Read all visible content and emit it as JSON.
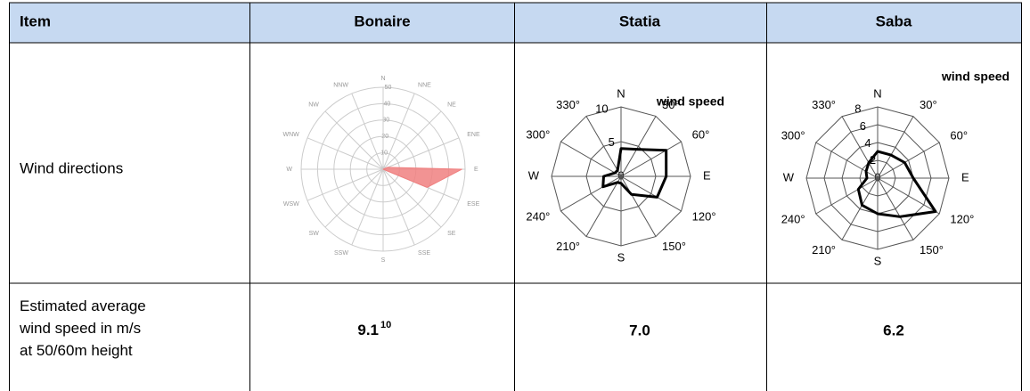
{
  "table": {
    "header": [
      "Item",
      "Bonaire",
      "Statia",
      "Saba"
    ],
    "rows": [
      [
        "Wind directions"
      ],
      [
        "Estimated average wind speed in m/s at 50/60m height",
        "9.1",
        "7.0",
        "6.2"
      ]
    ],
    "footnote_ref": "10"
  },
  "roses": [
    {
      "directions": [
        "N",
        "NNE",
        "NE",
        "ENE",
        "E",
        "ESE",
        "SE",
        "SSE",
        "S",
        "SSW",
        "SW",
        "WSW",
        "W",
        "WNW",
        "NW",
        "NNW"
      ],
      "rings": [
        0,
        10,
        20,
        30,
        40,
        50
      ],
      "values": [
        0,
        0,
        0,
        3,
        48,
        29,
        0,
        0,
        0,
        0,
        0,
        0,
        0,
        0,
        0,
        0
      ],
      "color": "#f08080",
      "shape": "circle"
    },
    {
      "title": "wind speed",
      "directions": [
        "N",
        "30°",
        "60°",
        "E",
        "120°",
        "150°",
        "S",
        "210°",
        "240°",
        "W",
        "300°",
        "330°"
      ],
      "rings": [
        0,
        5,
        10
      ],
      "values": [
        4,
        4.5,
        7.5,
        6.5,
        6,
        3,
        1,
        1,
        3,
        2.5,
        1,
        1
      ],
      "color": "#000000",
      "shape": "polygon"
    },
    {
      "title": "wind speed",
      "directions": [
        "N",
        "30°",
        "60°",
        "E",
        "120°",
        "150°",
        "S",
        "210°",
        "240°",
        "W",
        "300°",
        "330°"
      ],
      "rings": [
        0,
        2,
        4,
        6,
        8
      ],
      "values": [
        3,
        3,
        3.5,
        4,
        7.5,
        5,
        4,
        3.5,
        2.5,
        1.2,
        1.5,
        2
      ],
      "color": "#000000",
      "shape": "polygon"
    }
  ]
}
